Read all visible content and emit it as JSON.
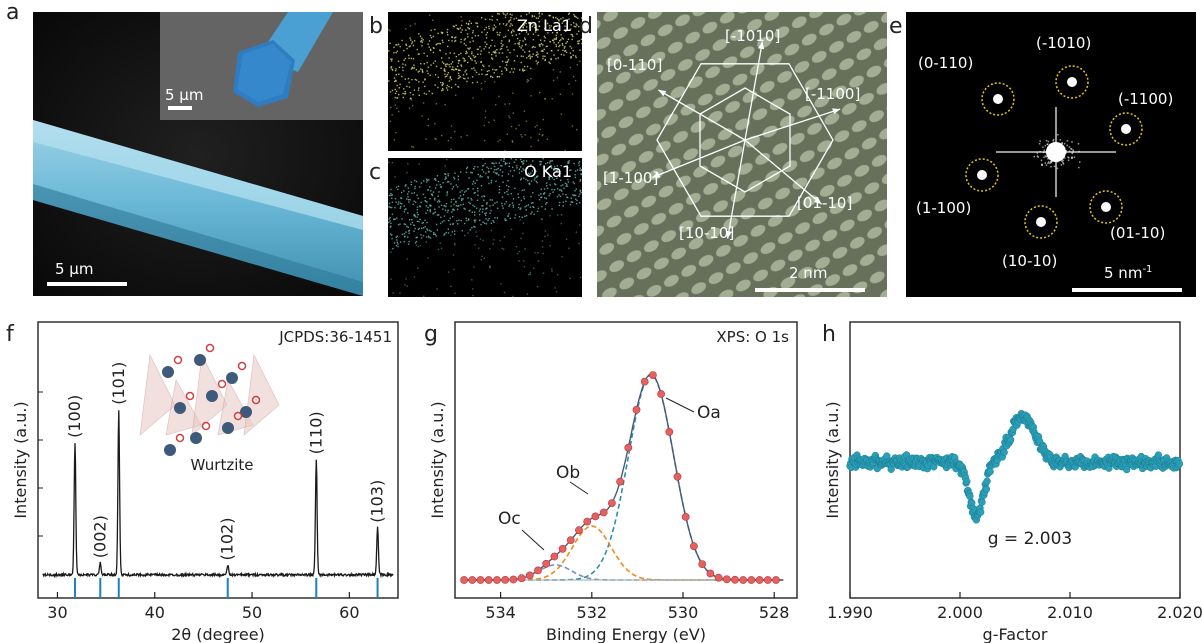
{
  "panels": {
    "a": {
      "letter": "a",
      "scale_main": "5 μm",
      "scale_inset": "5 μm"
    },
    "b": {
      "letter": "b",
      "map_label": "Zn La1"
    },
    "c": {
      "letter": "c",
      "map_label": "O Ka1"
    },
    "d": {
      "letter": "d",
      "scale": "2 nm",
      "directions": [
        "[-1010]",
        "[0-110]",
        "[-1100]",
        "[1-100]",
        "[01-10]",
        "[10-10]"
      ]
    },
    "e": {
      "letter": "e",
      "scale": "5 nm",
      "scale_sup": "-1",
      "spots": [
        "(-1010)",
        "(0-110)",
        "(-1100)",
        "(1-100)",
        "(01-10)",
        "(10-10)"
      ]
    },
    "f": {
      "letter": "f",
      "h": "f"
    },
    "g": {
      "letter": "g"
    },
    "h": {
      "letter": "h"
    }
  },
  "colors": {
    "xrd_line": "#1a1a1a",
    "ref_tick": "#1f7fc0",
    "xps_points": "#e3625c",
    "fit_oa": "#2c8fb0",
    "fit_ob": "#f08a1c",
    "fit_oc": "#7a92b8",
    "epr_points": "#2aa0b8",
    "hexagon": "#ffffff",
    "spot_circle": "#e6c21a"
  },
  "chart_data": [
    {
      "type": "line",
      "panel": "f",
      "annotation": "JCPDS:36-1451",
      "inset_label": "Wurtzite",
      "xlabel": "2θ (degree)",
      "ylabel": "Intensity (a.u.)",
      "xlim": [
        28,
        65
      ],
      "xticks": [
        30,
        40,
        50,
        60
      ],
      "peaks": [
        {
          "x": 31.8,
          "height": 0.56,
          "label": "(100)"
        },
        {
          "x": 34.4,
          "height": 0.05,
          "label": "(002)"
        },
        {
          "x": 36.3,
          "height": 0.7,
          "label": "(101)"
        },
        {
          "x": 47.5,
          "height": 0.04,
          "label": "(102)"
        },
        {
          "x": 56.6,
          "height": 0.49,
          "label": "(110)"
        },
        {
          "x": 62.9,
          "height": 0.2,
          "label": "(103)"
        }
      ],
      "reference_ticks": [
        31.8,
        34.4,
        36.3,
        47.5,
        56.6,
        62.9
      ]
    },
    {
      "type": "scatter",
      "panel": "g",
      "annotation": "XPS: O 1s",
      "xlabel": "Binding Energy (eV)",
      "ylabel": "Intensity (a.u.)",
      "xlim": [
        535,
        527.5
      ],
      "xticks": [
        534,
        532,
        530,
        528
      ],
      "components": [
        {
          "name": "Oa",
          "center": 530.7,
          "amplitude": 0.95,
          "width": 0.7
        },
        {
          "name": "Ob",
          "center": 532.0,
          "amplitude": 0.25,
          "width": 0.6
        },
        {
          "name": "Oc",
          "center": 532.8,
          "amplitude": 0.07,
          "width": 0.5
        }
      ],
      "x_range": [
        534.8,
        527.8
      ]
    },
    {
      "type": "scatter",
      "panel": "h",
      "annotation": "g = 2.003",
      "xlabel": "g-Factor",
      "ylabel": "Intensity (a.u.)",
      "xlim": [
        1.99,
        2.02
      ],
      "xtick_labels": [
        "1.990",
        "2.000",
        "2.010",
        "2.020"
      ],
      "xticks": [
        1.99,
        2.0,
        2.01,
        2.02
      ],
      "signal_center": 2.0035,
      "signal_min_g": 2.0015,
      "signal_max_g": 2.0057
    }
  ]
}
